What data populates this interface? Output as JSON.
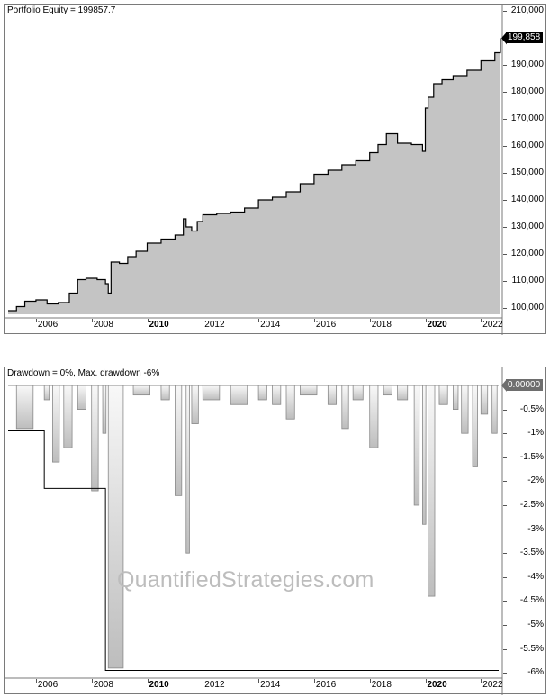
{
  "equity_panel": {
    "title": "Portfolio Equity = 199857.7",
    "last_value_tag": "199,858",
    "y_ticks": [
      {
        "label": "210,000",
        "value": 210000
      },
      {
        "label": "190,000",
        "value": 190000
      },
      {
        "label": "180,000",
        "value": 180000
      },
      {
        "label": "170,000",
        "value": 170000
      },
      {
        "label": "160,000",
        "value": 160000
      },
      {
        "label": "150,000",
        "value": 150000
      },
      {
        "label": "140,000",
        "value": 140000
      },
      {
        "label": "130,000",
        "value": 130000
      },
      {
        "label": "120,000",
        "value": 120000
      },
      {
        "label": "110,000",
        "value": 110000
      },
      {
        "label": "100,000",
        "value": 100000
      }
    ]
  },
  "drawdown_panel": {
    "title": "Drawdown = 0%, Max. drawdown -6%",
    "last_value_tag": "0.00000",
    "y_ticks": [
      {
        "label": "-0.5%",
        "value": -0.5
      },
      {
        "label": "-1%",
        "value": -1
      },
      {
        "label": "-1.5%",
        "value": -1.5
      },
      {
        "label": "-2%",
        "value": -2
      },
      {
        "label": "-2.5%",
        "value": -2.5
      },
      {
        "label": "-3%",
        "value": -3
      },
      {
        "label": "-3.5%",
        "value": -3.5
      },
      {
        "label": "-4%",
        "value": -4
      },
      {
        "label": "-4.5%",
        "value": -4.5
      },
      {
        "label": "-5%",
        "value": -5
      },
      {
        "label": "-5.5%",
        "value": -5.5
      },
      {
        "label": "-6%",
        "value": -6
      }
    ]
  },
  "x_axis": {
    "ticks": [
      {
        "label": "2006",
        "bold": false
      },
      {
        "label": "2008",
        "bold": false
      },
      {
        "label": "2010",
        "bold": true
      },
      {
        "label": "2012",
        "bold": false
      },
      {
        "label": "2014",
        "bold": false
      },
      {
        "label": "2016",
        "bold": false
      },
      {
        "label": "2018",
        "bold": false
      },
      {
        "label": "2020",
        "bold": true
      },
      {
        "label": "2022",
        "bold": false
      }
    ]
  },
  "watermark": "QuantifiedStrategies.com",
  "colors": {
    "equity_fill": "#c4c4c4",
    "equity_line": "#000000",
    "drawdown_line": "#8a8a8a",
    "drawdown_fill": "#e6e6e6",
    "max_dd_line": "#000000",
    "equity_tag_bg": "#000000",
    "drawdown_tag_bg": "#6e6e6e",
    "watermark": "#bdbdbd"
  },
  "chart_data": [
    {
      "type": "area",
      "title": "Portfolio Equity = 199857.7",
      "xlabel": "",
      "ylabel": "",
      "ylim": [
        97000,
        211000
      ],
      "grid": false,
      "x": [
        2005.0,
        2005.3,
        2005.6,
        2006.0,
        2006.4,
        2006.8,
        2007.2,
        2007.5,
        2007.8,
        2008.2,
        2008.5,
        2008.6,
        2008.7,
        2009.0,
        2009.3,
        2009.6,
        2010.0,
        2010.5,
        2011.0,
        2011.3,
        2011.4,
        2011.6,
        2011.8,
        2012.0,
        2012.5,
        2013.0,
        2013.5,
        2014.0,
        2014.5,
        2015.0,
        2015.5,
        2016.0,
        2016.5,
        2017.0,
        2017.5,
        2018.0,
        2018.3,
        2018.6,
        2019.0,
        2019.5,
        2019.9,
        2020.0,
        2020.1,
        2020.3,
        2020.6,
        2021.0,
        2021.5,
        2022.0,
        2022.5,
        2022.7
      ],
      "values": [
        99000,
        100500,
        102500,
        103000,
        101500,
        102000,
        105500,
        110500,
        111000,
        110500,
        109000,
        105500,
        117000,
        116500,
        119000,
        121000,
        124000,
        125500,
        127000,
        133000,
        130000,
        128500,
        132000,
        134500,
        135000,
        135500,
        137000,
        140000,
        141000,
        143000,
        146000,
        149500,
        151000,
        153000,
        154500,
        157500,
        160500,
        164500,
        161000,
        160500,
        158000,
        174000,
        178000,
        183000,
        184500,
        186000,
        188000,
        191500,
        194500,
        199858
      ],
      "series": [
        {
          "name": "Portfolio Equity",
          "last": 199857.7
        }
      ]
    },
    {
      "type": "area",
      "title": "Drawdown = 0%, Max. drawdown -6%",
      "xlabel": "",
      "ylabel": "%",
      "ylim": [
        -6.1,
        0.1
      ],
      "grid": false,
      "x": [
        2005.0,
        2005.3,
        2006.3,
        2006.6,
        2007.0,
        2007.5,
        2008.0,
        2008.4,
        2008.6,
        2009.5,
        2010.5,
        2011.0,
        2011.4,
        2011.6,
        2012.0,
        2013.0,
        2014.0,
        2014.5,
        2015.0,
        2015.5,
        2016.5,
        2017.0,
        2017.4,
        2018.0,
        2018.5,
        2019.0,
        2019.6,
        2019.9,
        2020.1,
        2020.5,
        2021.0,
        2021.3,
        2021.7,
        2022.0,
        2022.4,
        2022.7
      ],
      "values": [
        0,
        -0.9,
        -0.3,
        -1.6,
        -1.3,
        -0.5,
        -2.2,
        -1.0,
        -5.9,
        -0.2,
        -0.3,
        -2.3,
        -3.5,
        -0.8,
        -0.3,
        -0.4,
        -0.3,
        -0.4,
        -0.7,
        -0.2,
        -0.4,
        -0.9,
        -0.3,
        -1.3,
        -0.2,
        -0.3,
        -2.5,
        -2.9,
        -4.4,
        -0.4,
        -0.5,
        -1.0,
        -1.7,
        -0.6,
        -1.0,
        0
      ],
      "series": [
        {
          "name": "Drawdown",
          "current": 0,
          "max": -6
        }
      ],
      "max_drawdown_envelope": [
        {
          "from": 2005.0,
          "to": 2006.3,
          "value": -0.95
        },
        {
          "from": 2006.3,
          "to": 2008.5,
          "value": -2.15
        },
        {
          "from": 2008.5,
          "to": 2022.7,
          "value": -5.95
        }
      ]
    }
  ]
}
